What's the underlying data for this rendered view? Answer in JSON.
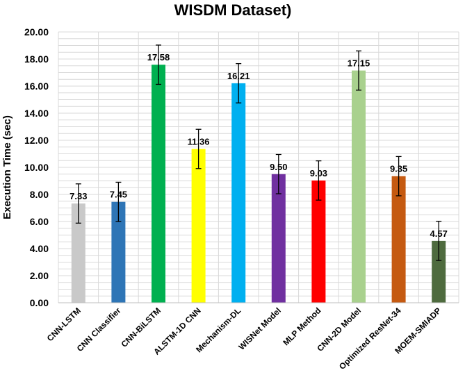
{
  "chart_data": {
    "type": "bar",
    "title": "WISDM Dataset)",
    "xlabel": "",
    "ylabel": "Execution Time (sec)",
    "ylim": [
      0,
      20
    ],
    "yticks": [
      "0.00",
      "2.00",
      "4.00",
      "6.00",
      "8.00",
      "10.00",
      "12.00",
      "14.00",
      "16.00",
      "18.00",
      "20.00"
    ],
    "grid": true,
    "error_bars": true,
    "categories": [
      "CNN-LSTM",
      "CNN Classifier",
      "CNN-BiLSTM",
      "ALSTM-1D CNN",
      "Mechanism-DL",
      "WISNet Model",
      "MLP Method",
      "CNN-2D Model",
      "Optimized ResNet-34",
      "MOEM-SMIADP"
    ],
    "values": [
      7.33,
      7.45,
      17.58,
      11.36,
      16.21,
      9.5,
      9.03,
      17.15,
      9.35,
      4.57
    ],
    "labels": [
      "7.33",
      "7.45",
      "17.58",
      "11.36",
      "16.21",
      "9.50",
      "9.03",
      "17.15",
      "9.35",
      "4.57"
    ],
    "errors": [
      1.45,
      1.45,
      1.45,
      1.45,
      1.45,
      1.45,
      1.45,
      1.45,
      1.45,
      1.45
    ],
    "colors": [
      "#c9c9c9",
      "#2e75b6",
      "#00b050",
      "#ffff00",
      "#00b0f0",
      "#7030a0",
      "#ff0000",
      "#a9d18e",
      "#c55a11",
      "#4e6b3e"
    ]
  }
}
